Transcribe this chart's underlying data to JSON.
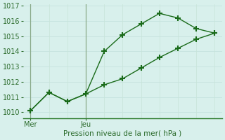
{
  "line1_x": [
    0,
    1,
    2,
    3,
    4,
    5,
    6,
    7,
    8,
    9,
    10
  ],
  "line1_y": [
    1010.1,
    1011.3,
    1010.7,
    1011.2,
    1014.0,
    1015.1,
    1015.8,
    1016.5,
    1016.2,
    1015.5,
    1015.2
  ],
  "line2_x": [
    0,
    1,
    2,
    3,
    4,
    5,
    6,
    7,
    8,
    9,
    10
  ],
  "line2_y": [
    1010.1,
    1011.3,
    1010.7,
    1011.2,
    1011.8,
    1012.2,
    1012.9,
    1013.6,
    1014.2,
    1014.8,
    1015.2
  ],
  "xtick_positions": [
    0,
    3
  ],
  "xtick_labels": [
    "Mer",
    "Jeu"
  ],
  "ytick_positions": [
    1010,
    1011,
    1012,
    1013,
    1014,
    1015,
    1016,
    1017
  ],
  "ylim": [
    1009.6,
    1017.1
  ],
  "xlim": [
    -0.4,
    10.4
  ],
  "xlabel": "Pression niveau de la mer( hPa )",
  "line_color": "#1a6b1a",
  "bg_color": "#d8f0ec",
  "grid_color_h": "#c8e4e0",
  "grid_color_v": "#c8e4d8",
  "vline_color": "#8aaa8a",
  "marker": "+",
  "linewidth": 1.0,
  "markersize": 6,
  "markeredgewidth": 1.5,
  "xlabel_fontsize": 7.5,
  "tick_fontsize": 7,
  "n_vcols": 11
}
